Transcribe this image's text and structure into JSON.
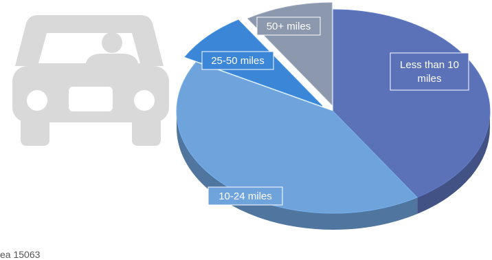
{
  "chart_data": {
    "type": "pie",
    "style": "3d",
    "title": "",
    "slices": [
      {
        "label": "Less than 10 miles",
        "label_lines": [
          "Less than 10",
          "miles"
        ],
        "value": 41,
        "color": "#5b72b8"
      },
      {
        "label": "10-24 miles",
        "label_lines": [
          "10-24 miles"
        ],
        "value": 42,
        "color": "#6fa3dc"
      },
      {
        "label": "25-50 miles",
        "label_lines": [
          "25-50 miles"
        ],
        "value": 8,
        "color": "#3b86d6"
      },
      {
        "label": "50+ miles",
        "label_lines": [
          "50+ miles"
        ],
        "value": 9,
        "color": "#8c98ad"
      }
    ]
  },
  "decor": {
    "icon": "car-with-driver-icon",
    "icon_color": "#d9d9d9"
  },
  "footer": {
    "text": "ea 15063"
  }
}
